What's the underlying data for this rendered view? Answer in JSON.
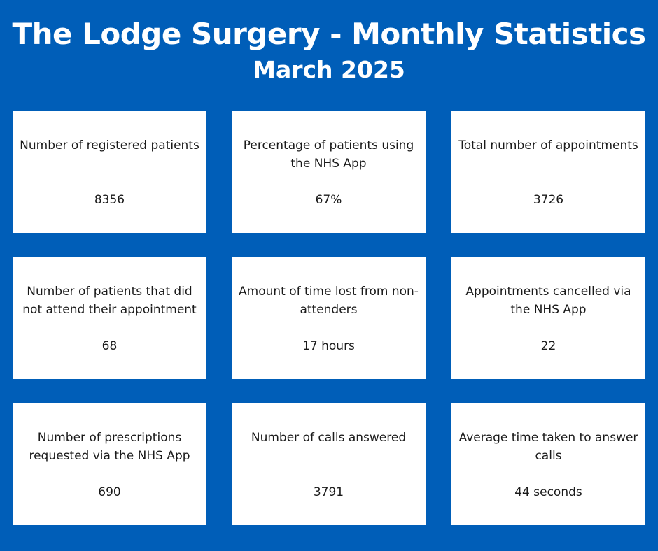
{
  "header": {
    "title": "The Lodge Surgery - Monthly Statistics",
    "subtitle": "March 2025"
  },
  "colors": {
    "background": "#005EB8",
    "card": "#FFFFFF",
    "text": "#1A1A1A"
  },
  "stats": [
    {
      "label": "Number of registered patients",
      "value": "8356"
    },
    {
      "label": "Percentage of patients using the NHS App",
      "value": "67%"
    },
    {
      "label": "Total number of appointments",
      "value": "3726"
    },
    {
      "label": "Number of patients that did not attend their appointment",
      "value": "68"
    },
    {
      "label": "Amount of time lost from non-attenders",
      "value": "17 hours"
    },
    {
      "label": "Appointments cancelled via the NHS App",
      "value": "22"
    },
    {
      "label": "Number of prescriptions requested via the NHS App",
      "value": "690"
    },
    {
      "label": "Number of calls answered",
      "value": "3791"
    },
    {
      "label": "Average time taken to answer calls",
      "value": "44 seconds"
    }
  ]
}
